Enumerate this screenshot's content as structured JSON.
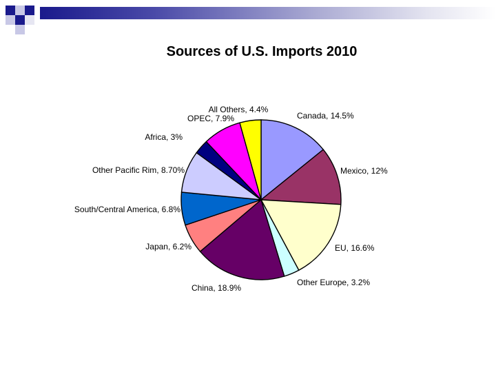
{
  "slide": {
    "title": "Sources of U.S. Imports 2010"
  },
  "chart_data": {
    "type": "pie",
    "title": "Sources of U.S. Imports 2010",
    "start_angle_deg": 0,
    "direction": "clockwise",
    "slices": [
      {
        "name": "Canada",
        "value": 14.5,
        "label": "Canada, 14.5%",
        "color": "#9999ff"
      },
      {
        "name": "Mexico",
        "value": 12,
        "label": "Mexico, 12%",
        "color": "#993366"
      },
      {
        "name": "EU",
        "value": 16.6,
        "label": "EU, 16.6%",
        "color": "#ffffcc"
      },
      {
        "name": "Other Europe",
        "value": 3.2,
        "label": "Other Europe, 3.2%",
        "color": "#ccffff"
      },
      {
        "name": "China",
        "value": 18.9,
        "label": "China, 18.9%",
        "color": "#660066"
      },
      {
        "name": "Japan",
        "value": 6.2,
        "label": "Japan, 6.2%",
        "color": "#ff8080"
      },
      {
        "name": "South/Central America",
        "value": 6.8,
        "label": "South/Central America, 6.8%",
        "color": "#0066cc"
      },
      {
        "name": "Other Pacific Rim",
        "value": 8.7,
        "label": "Other Pacific Rim, 8.70%",
        "color": "#ccccff"
      },
      {
        "name": "Africa",
        "value": 3,
        "label": "Africa, 3%",
        "color": "#000080"
      },
      {
        "name": "OPEC",
        "value": 7.9,
        "label": "OPEC, 7.9%",
        "color": "#ff00ff"
      },
      {
        "name": "All Others",
        "value": 4.4,
        "label": "All Others, 4.4%",
        "color": "#ffff00"
      }
    ]
  }
}
